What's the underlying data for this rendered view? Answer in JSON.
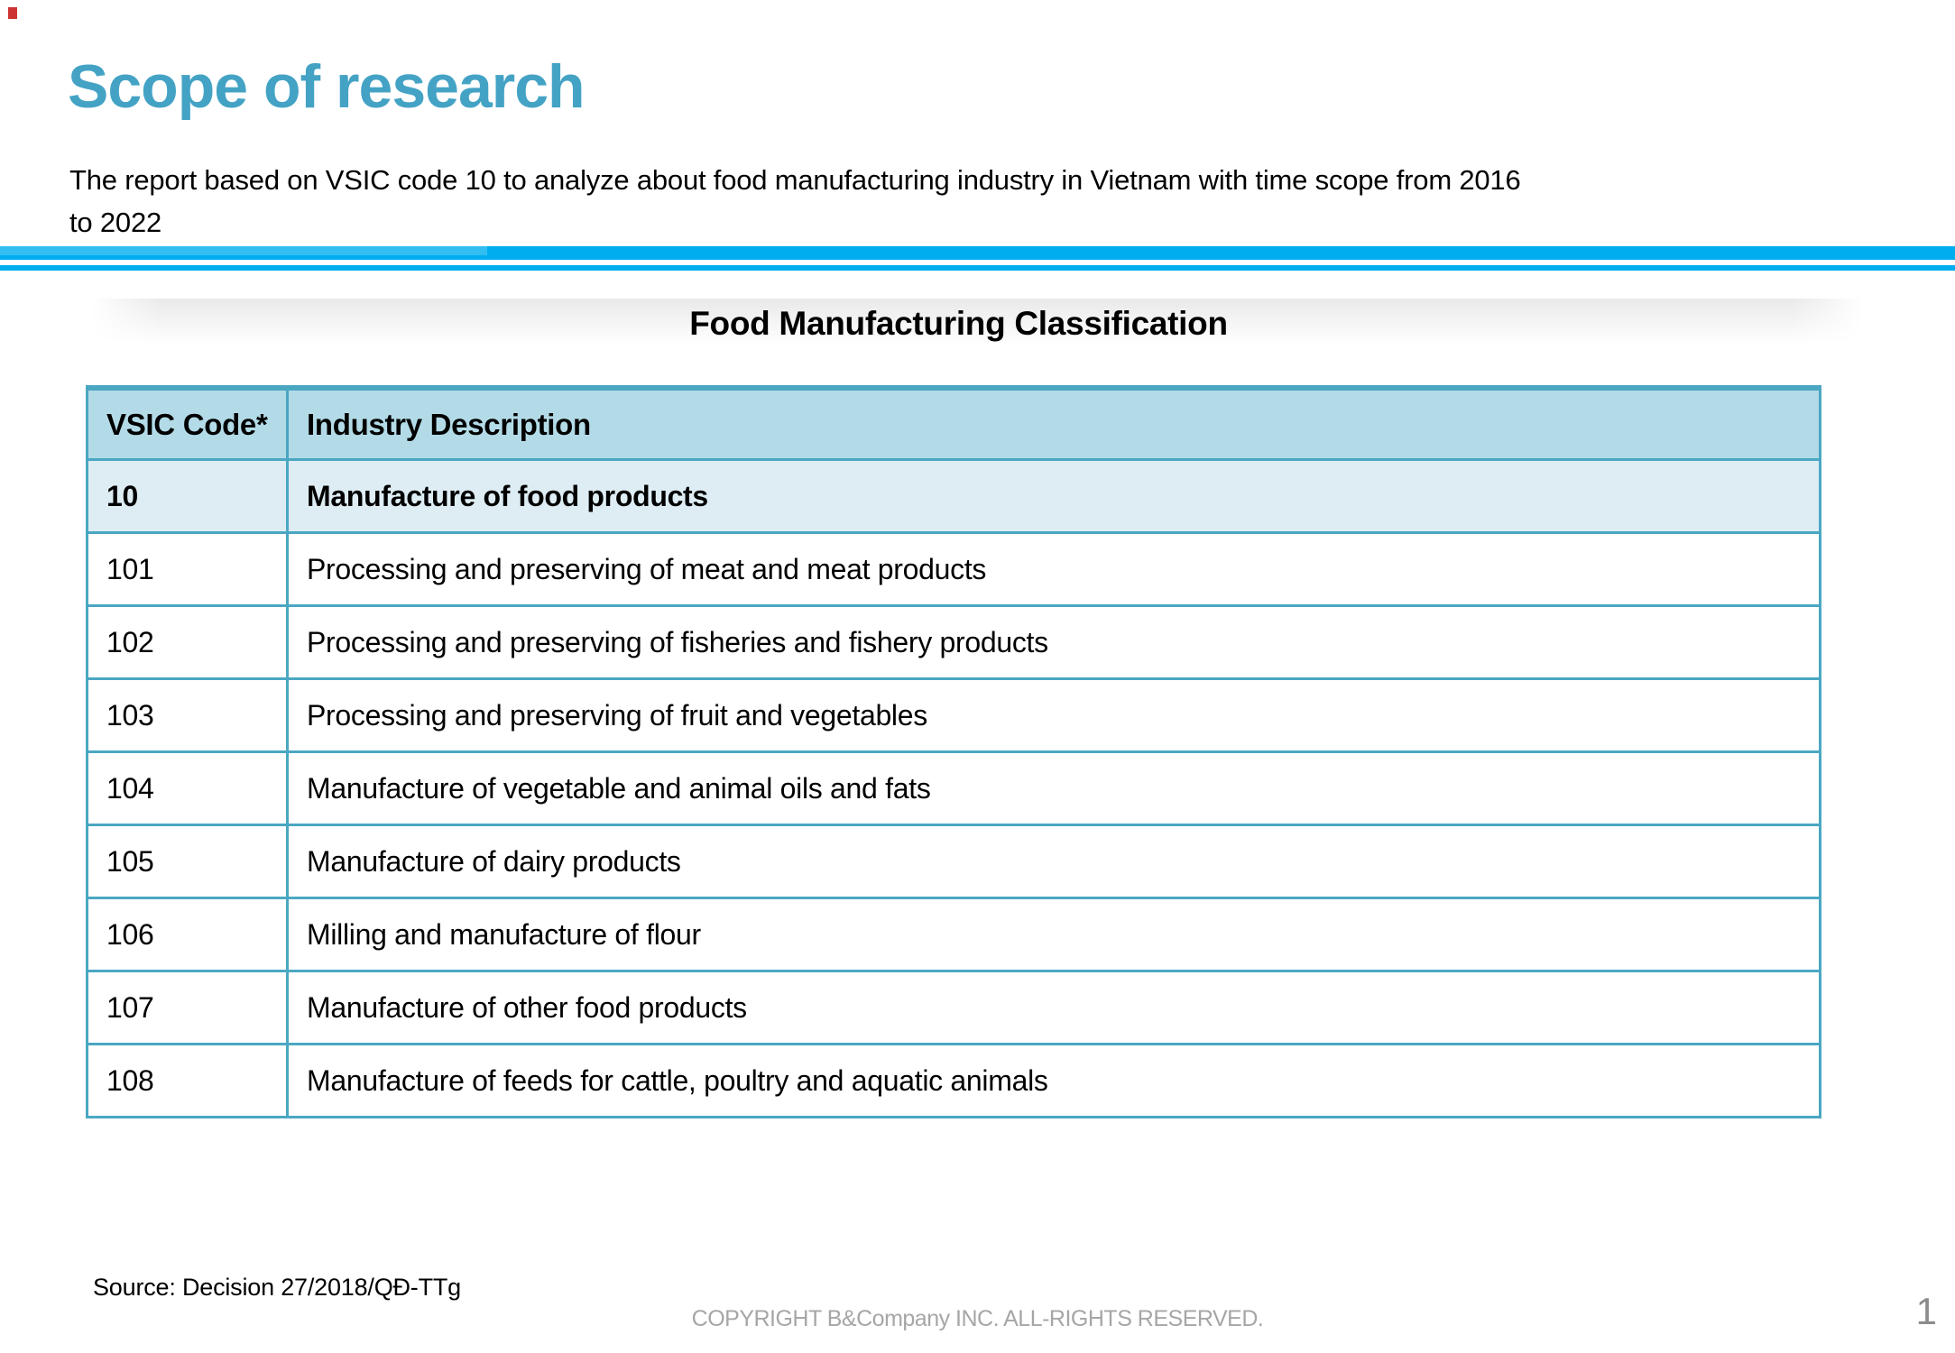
{
  "slide": {
    "title": "Scope of research",
    "intro_lines": [
      "The report based on VSIC code 10 to analyze about food manufacturing industry in Vietnam with time scope from 2016",
      "to 2022"
    ],
    "table_title": "Food Manufacturing Classification",
    "source": "Source: Decision 27/2018/QĐ-TTg",
    "copyright": "COPYRIGHT B&Company INC. ALL-RIGHTS RESERVED.",
    "page_number": "1"
  },
  "table": {
    "columns": [
      "VSIC Code*",
      "Industry Description"
    ],
    "rows": [
      {
        "code": "10",
        "description": "Manufacture of food products",
        "bold": true
      },
      {
        "code": "101",
        "description": "Processing and preserving of meat and meat products",
        "bold": false
      },
      {
        "code": "102",
        "description": "Processing and preserving of fisheries and fishery products",
        "bold": false
      },
      {
        "code": "103",
        "description": "Processing and preserving of fruit and vegetables",
        "bold": false
      },
      {
        "code": "104",
        "description": "Manufacture of vegetable and animal oils and fats",
        "bold": false
      },
      {
        "code": "105",
        "description": "Manufacture of dairy products",
        "bold": false
      },
      {
        "code": "106",
        "description": "Milling and manufacture of flour",
        "bold": false
      },
      {
        "code": "107",
        "description": "Manufacture of other food products",
        "bold": false
      },
      {
        "code": "108",
        "description": "Manufacture of feeds for cattle, poultry and aquatic animals",
        "bold": false
      }
    ]
  },
  "colors": {
    "accent_teal": "#44A3C5",
    "divider_blue": "#00AEEF",
    "table_border": "#4AA7C2",
    "header_bg": "#B3DBE7",
    "highlight_row_bg": "#DEEDF4",
    "muted_gray": "#A6A6A6",
    "corner_mark_red": "#C00000"
  }
}
